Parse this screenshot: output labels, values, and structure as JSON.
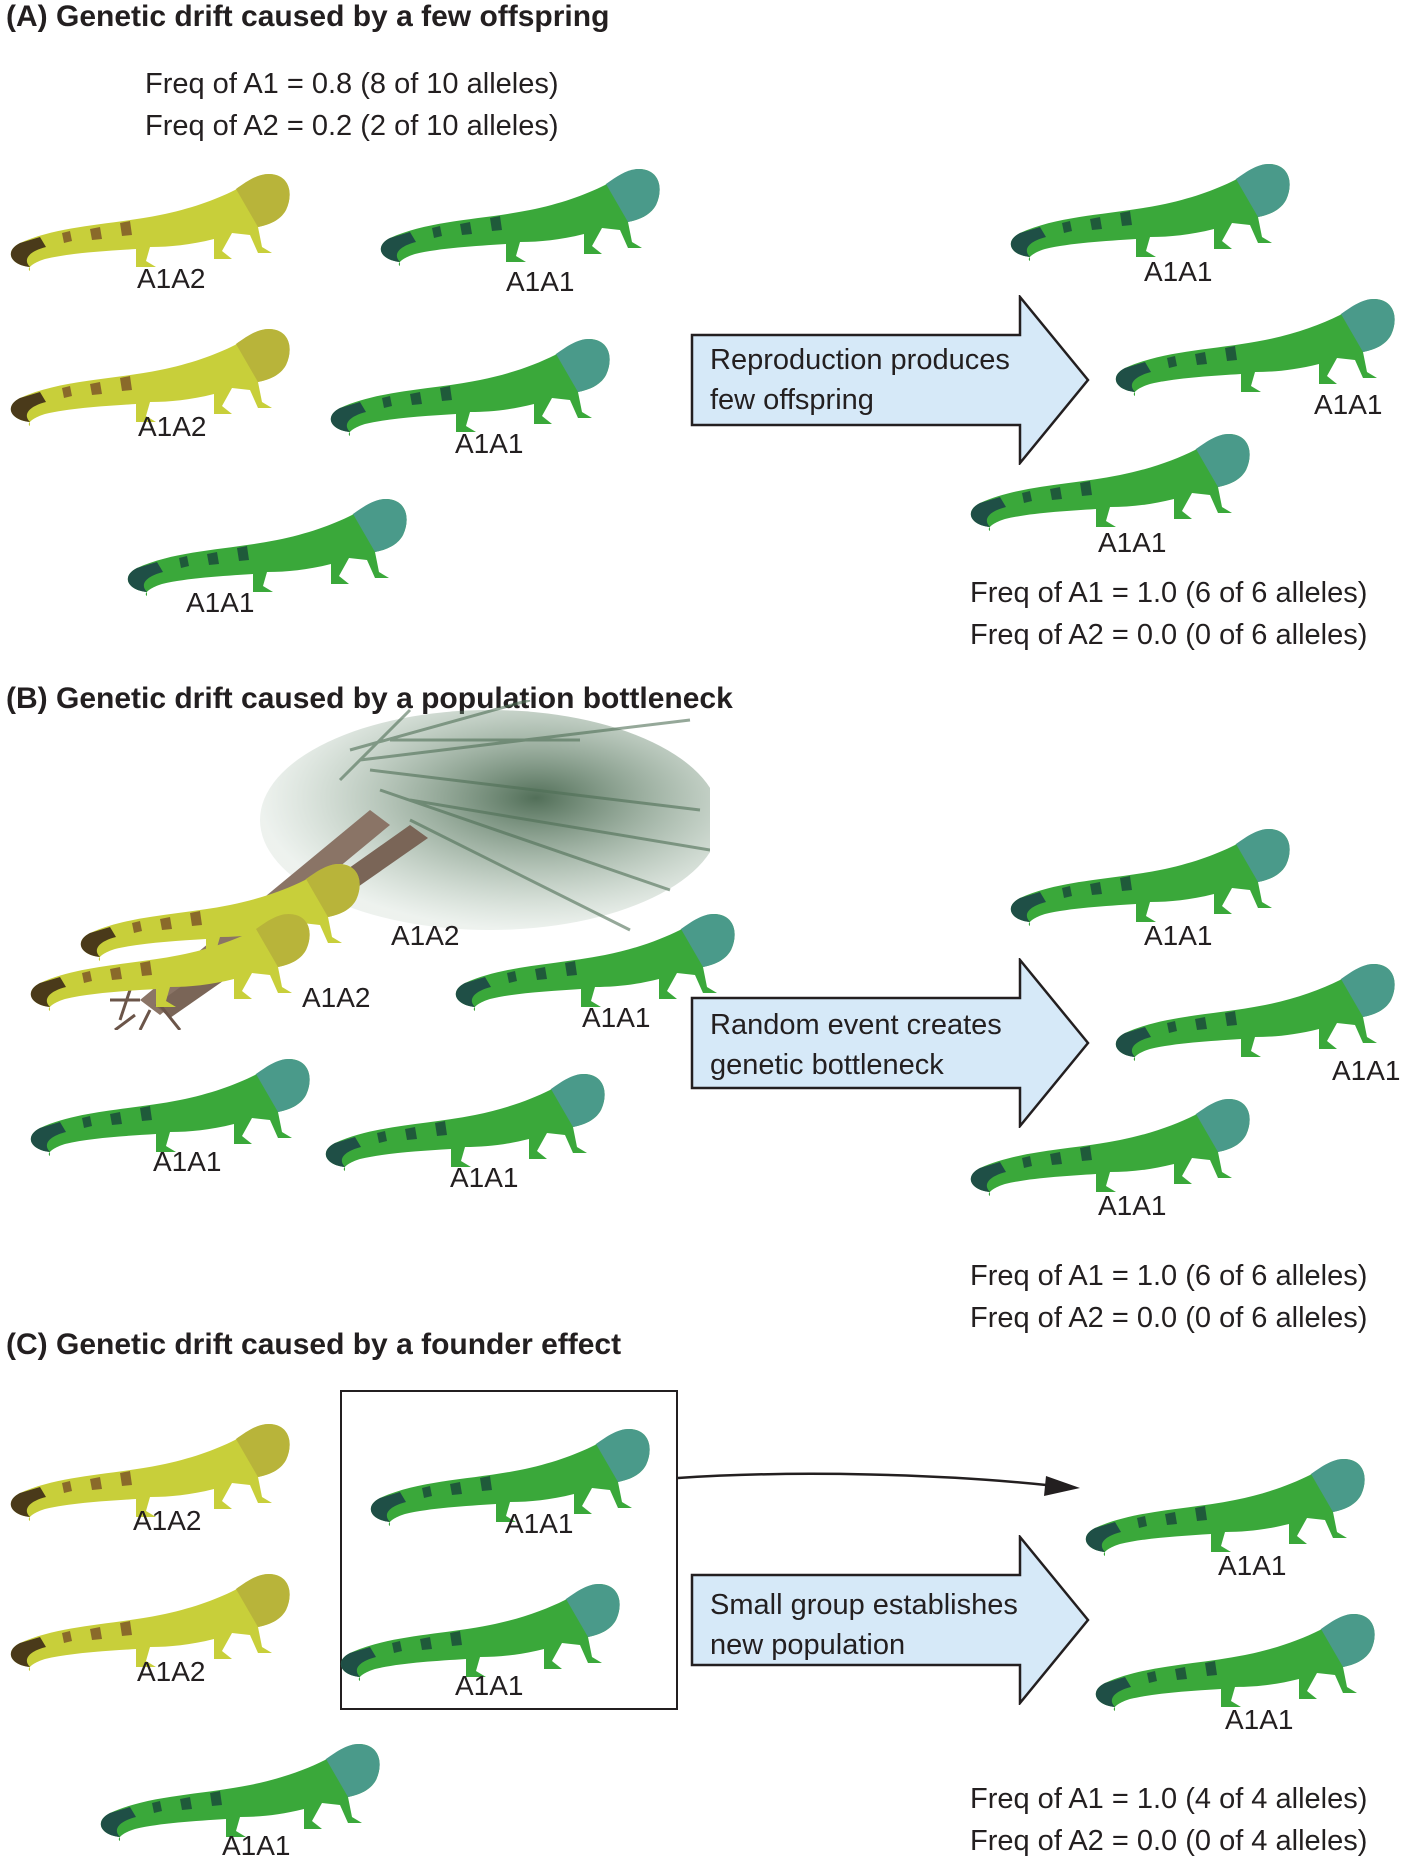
{
  "panel_a": {
    "title": "(A)  Genetic drift caused by a few offspring",
    "freq_before": [
      "Freq of A1 = 0.8 (8 of 10 alleles)",
      "Freq of A2 = 0.2 (2 of 10 alleles)"
    ],
    "before_labels": [
      "A1A2",
      "A1A1",
      "A1A2",
      "A1A1",
      "A1A1"
    ],
    "arrow_text": [
      "Reproduction produces",
      "few offspring"
    ],
    "after_labels": [
      "A1A1",
      "A1A1",
      "A1A1"
    ],
    "freq_after": [
      "Freq of A1 = 1.0 (6 of 6 alleles)",
      "Freq of A2 = 0.0 (0 of 6 alleles)"
    ]
  },
  "panel_b": {
    "title": "(B)  Genetic drift caused by a population bottleneck",
    "before_labels": [
      "A1A2",
      "A1A2",
      "A1A1",
      "A1A1",
      "A1A1"
    ],
    "arrow_text": [
      "Random event creates",
      "genetic bottleneck"
    ],
    "after_labels": [
      "A1A1",
      "A1A1",
      "A1A1"
    ],
    "freq_after": [
      "Freq of A1 = 1.0 (6 of 6 alleles)",
      "Freq of A2 = 0.0 (0 of 6 alleles)"
    ]
  },
  "panel_c": {
    "title": "(C)  Genetic drift caused by a founder effect",
    "before_labels": [
      "A1A2",
      "A1A1",
      "A1A2",
      "A1A1",
      "A1A1"
    ],
    "arrow_text": [
      "Small group establishes",
      "new population"
    ],
    "after_labels": [
      "A1A1",
      "A1A1"
    ],
    "freq_after": [
      "Freq of A1 = 1.0 (4 of 4 alleles)",
      "Freq of A2 = 0.0 (0 of 4 alleles)"
    ]
  },
  "colors": {
    "green_iguana": "#3aa83a",
    "yellow_iguana": "#c8cf3a",
    "arrow_fill": "#d6e9f8",
    "text": "#231f20"
  }
}
